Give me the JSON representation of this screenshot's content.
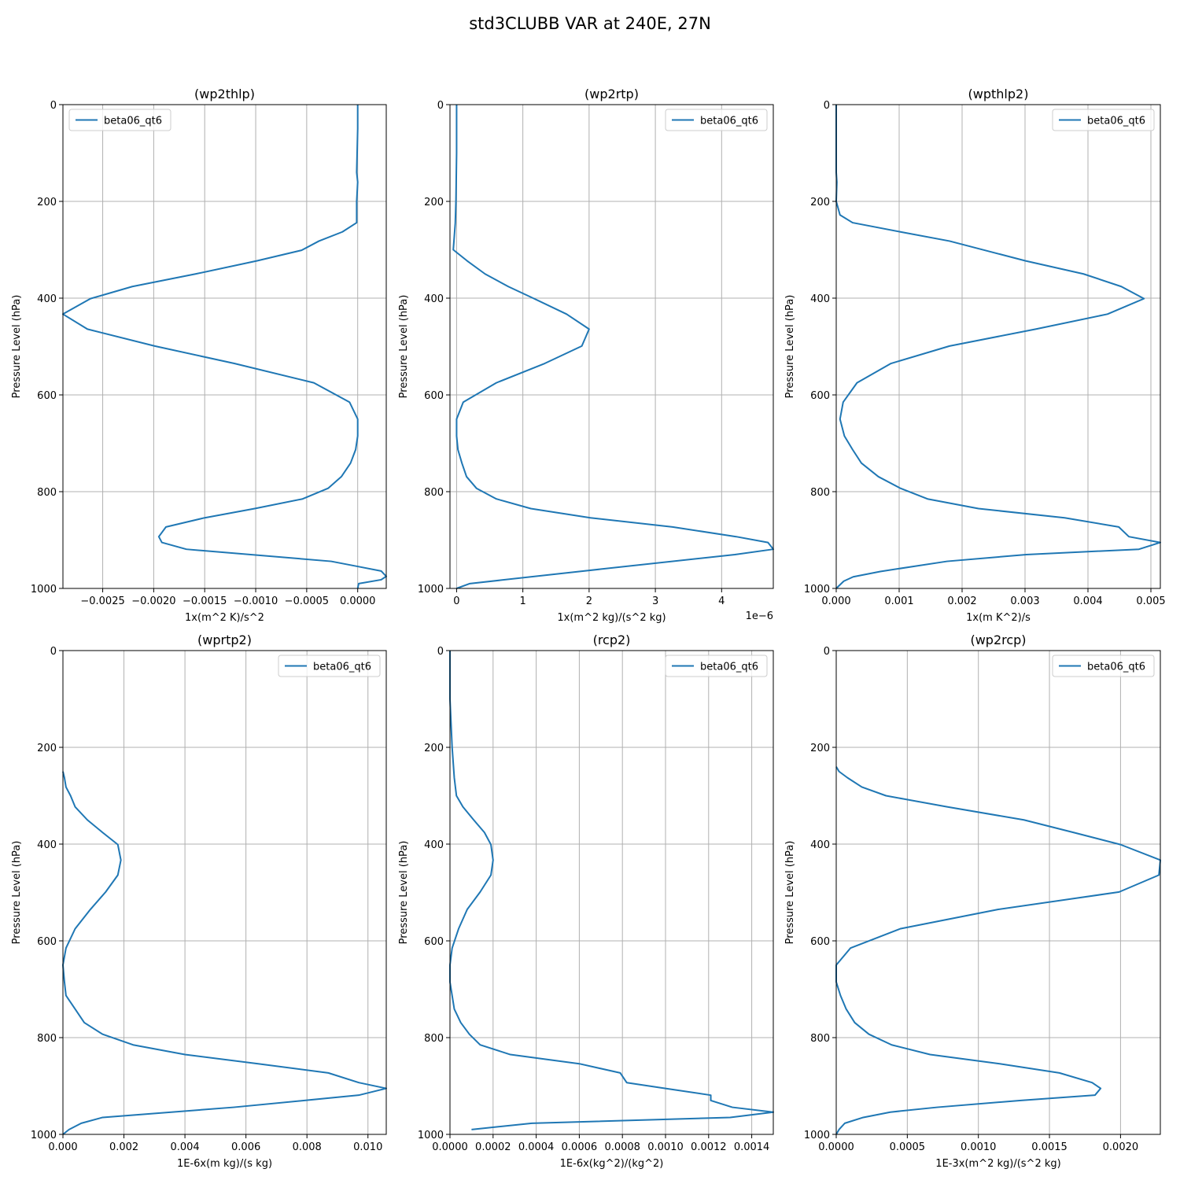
{
  "figure": {
    "title": "std3CLUBB VAR at 240E, 27N"
  },
  "colors": {
    "series": "#1f77b4",
    "grid": "#b0b0b0",
    "legend_border": "#cccccc"
  },
  "chart_data": [
    {
      "type": "line",
      "title": "(wp2thlp)",
      "xlabel": "1x(m^2 K)/s^2",
      "ylabel": "Pressure Level (hPa)",
      "offset_text": "",
      "xlim": [
        -0.00289,
        0.00028
      ],
      "ylim": [
        1000,
        0
      ],
      "grid": true,
      "legend": {
        "entries": [
          "beta06_qt6"
        ],
        "placement": "upper left"
      },
      "xticks": [
        -0.0025,
        -0.002,
        -0.0015,
        -0.001,
        -0.0005,
        0.0
      ],
      "xtick_labels": [
        "−0.0025",
        "−0.0020",
        "−0.0015",
        "−0.0010",
        "−0.0005",
        "0.0000"
      ],
      "yticks": [
        0,
        200,
        400,
        600,
        800,
        1000
      ],
      "ytick_labels": [
        "0",
        "200",
        "400",
        "600",
        "800",
        "1000"
      ],
      "series": [
        {
          "name": "beta06_qt6",
          "x": [
            0.0,
            0.0,
            -1e-05,
            0.0,
            -1e-05,
            -1e-05,
            -1e-05,
            -1e-05,
            -0.00015,
            -0.00038,
            -0.00055,
            -0.00099,
            -0.00159,
            -0.00221,
            -0.00262,
            -0.00289,
            -0.00265,
            -0.00199,
            -0.00121,
            -0.00043,
            -8e-05,
            0.0,
            0.0,
            -2e-05,
            -7e-05,
            -0.00016,
            -0.00029,
            -0.00054,
            -0.00101,
            -0.0015,
            -0.00188,
            -0.00195,
            -0.00192,
            -0.00168,
            -0.00026,
            1e-05,
            0.00023,
            0.00028,
            0.00023,
            1e-05,
            0.0
          ],
          "y": [
            0,
            50,
            140,
            160,
            200,
            228,
            236,
            244,
            263,
            282,
            301,
            323,
            350,
            376,
            401,
            433,
            464,
            499,
            535,
            575,
            615,
            650,
            685,
            713,
            741,
            769,
            793,
            815,
            835,
            854,
            873,
            893,
            905,
            919,
            944,
            955,
            964,
            975,
            982,
            990,
            1000
          ]
        }
      ]
    },
    {
      "type": "line",
      "title": "(wp2rtp)",
      "xlabel": "1x(m^2 kg)/(s^2 kg)",
      "ylabel": "Pressure Level (hPa)",
      "offset_text": "1e−6",
      "xlim": [
        -1e-07,
        4.78e-06
      ],
      "ylim": [
        1000,
        0
      ],
      "grid": true,
      "legend": {
        "entries": [
          "beta06_qt6"
        ],
        "placement": "upper right"
      },
      "xticks": [
        0,
        1e-06,
        2e-06,
        3e-06,
        4e-06
      ],
      "xtick_labels": [
        "0",
        "1",
        "2",
        "3",
        "4"
      ],
      "yticks": [
        0,
        200,
        400,
        600,
        800,
        1000
      ],
      "ytick_labels": [
        "0",
        "200",
        "400",
        "600",
        "800",
        "1000"
      ],
      "series": [
        {
          "name": "beta06_qt6",
          "x": [
            0.0,
            0.0,
            -1e-08,
            -2e-08,
            -5e-08,
            1.6e-07,
            4.3e-07,
            7.8e-07,
            1.17e-06,
            1.66e-06,
            2e-06,
            1.89e-06,
            1.33e-06,
            6e-07,
            1e-07,
            0.0,
            0.0,
            2e-08,
            8e-08,
            1.5e-07,
            3e-07,
            6e-07,
            1.12e-06,
            2.02e-06,
            3.26e-06,
            4.22e-06,
            4.7e-06,
            4.78e-06,
            4.2e-06,
            1.85e-06,
            2e-07,
            0.0
          ],
          "y": [
            0,
            100,
            200,
            245,
            300,
            323,
            350,
            376,
            401,
            433,
            464,
            499,
            535,
            575,
            615,
            650,
            685,
            713,
            741,
            769,
            793,
            815,
            835,
            854,
            873,
            893,
            905,
            919,
            930,
            965,
            990,
            1000
          ]
        }
      ]
    },
    {
      "type": "line",
      "title": "(wpthlp2)",
      "xlabel": "1x(m K^2)/s",
      "ylabel": "Pressure Level (hPa)",
      "offset_text": "",
      "xlim": [
        0,
        0.00515
      ],
      "ylim": [
        1000,
        0
      ],
      "grid": true,
      "legend": {
        "entries": [
          "beta06_qt6"
        ],
        "placement": "upper right"
      },
      "xticks": [
        0.0,
        0.001,
        0.002,
        0.003,
        0.004,
        0.005
      ],
      "xtick_labels": [
        "0.000",
        "0.001",
        "0.002",
        "0.003",
        "0.004",
        "0.005"
      ],
      "yticks": [
        0,
        200,
        400,
        600,
        800,
        1000
      ],
      "ytick_labels": [
        "0",
        "200",
        "400",
        "600",
        "800",
        "1000"
      ],
      "series": [
        {
          "name": "beta06_qt6",
          "x": [
            0.0,
            0.0,
            1e-05,
            0.0,
            6e-05,
            0.00026,
            0.00102,
            0.0018,
            0.00301,
            0.00393,
            0.00453,
            0.00489,
            0.00431,
            0.00317,
            0.0018,
            0.00087,
            0.00033,
            0.00011,
            6e-05,
            0.00013,
            0.00026,
            0.0004,
            0.00067,
            0.00102,
            0.00145,
            0.00226,
            0.00363,
            0.00449,
            0.00465,
            0.00515,
            0.00481,
            0.00302,
            0.00176,
            0.0007,
            0.00027,
            0.00012,
            0.0
          ],
          "y": [
            0,
            140,
            160,
            200,
            228,
            244,
            263,
            282,
            323,
            350,
            376,
            401,
            433,
            464,
            499,
            535,
            575,
            615,
            650,
            685,
            713,
            741,
            769,
            793,
            815,
            835,
            854,
            873,
            893,
            905,
            919,
            930,
            944,
            965,
            976,
            985,
            1000
          ]
        }
      ]
    },
    {
      "type": "line",
      "title": "(wprtp2)",
      "xlabel": "1E-6x(m kg)/(s kg)",
      "ylabel": "Pressure Level (hPa)",
      "offset_text": "",
      "xlim": [
        0,
        0.0106
      ],
      "ylim": [
        1000,
        0
      ],
      "grid": true,
      "legend": {
        "entries": [
          "beta06_qt6"
        ],
        "placement": "upper right"
      },
      "xticks": [
        0.0,
        0.002,
        0.004,
        0.006,
        0.008,
        0.01
      ],
      "xtick_labels": [
        "0.000",
        "0.002",
        "0.004",
        "0.006",
        "0.008",
        "0.010"
      ],
      "yticks": [
        0,
        200,
        400,
        600,
        800,
        1000
      ],
      "ytick_labels": [
        "0",
        "200",
        "400",
        "600",
        "800",
        "1000"
      ],
      "series": [
        {
          "name": "beta06_qt6",
          "x": [
            0.0,
            5e-05,
            0.0001,
            0.00025,
            0.0004,
            0.0008,
            0.0013,
            0.0018,
            0.0019,
            0.0018,
            0.0014,
            0.0009,
            0.0004,
            0.0001,
            0.0,
            5e-05,
            0.0001,
            0.0004,
            0.0007,
            0.0013,
            0.0023,
            0.004,
            0.0064,
            0.0087,
            0.0097,
            0.0106,
            0.0097,
            0.0056,
            0.0013,
            0.0006,
            0.0002,
            0.0
          ],
          "y": [
            250,
            263,
            282,
            300,
            323,
            350,
            376,
            401,
            433,
            464,
            499,
            535,
            575,
            615,
            650,
            685,
            713,
            741,
            769,
            793,
            815,
            835,
            854,
            873,
            893,
            905,
            919,
            944,
            965,
            977,
            990,
            1000
          ]
        }
      ]
    },
    {
      "type": "line",
      "title": "(rcp2)",
      "xlabel": "1E-6x(kg^2)/(kg^2)",
      "ylabel": "Pressure Level (hPa)",
      "offset_text": "",
      "xlim": [
        0,
        0.0015
      ],
      "ylim": [
        1000,
        0
      ],
      "grid": true,
      "legend": {
        "entries": [
          "beta06_qt6"
        ],
        "placement": "upper right"
      },
      "xticks": [
        0.0,
        0.0002,
        0.0004,
        0.0006,
        0.0008,
        0.001,
        0.0012,
        0.0014
      ],
      "xtick_labels": [
        "0.0000",
        "0.0002",
        "0.0004",
        "0.0006",
        "0.0008",
        "0.0010",
        "0.0012",
        "0.0014"
      ],
      "yticks": [
        0,
        200,
        400,
        600,
        800,
        1000
      ],
      "ytick_labels": [
        "0",
        "200",
        "400",
        "600",
        "800",
        "1000"
      ],
      "series": [
        {
          "name": "beta06_qt6",
          "x": [
            0.0,
            0.0,
            1e-05,
            2e-05,
            3e-05,
            6e-05,
            0.00011,
            0.00016,
            0.00019,
            0.0002,
            0.00019,
            0.00014,
            8e-05,
            4e-05,
            1e-05,
            0.0,
            0.0,
            1e-05,
            2e-05,
            5e-05,
            9e-05,
            0.00014,
            0.00028,
            0.0006,
            0.00079,
            0.00082,
            0.001,
            0.00121,
            0.00121,
            0.00131,
            0.0015,
            0.0013,
            0.00038,
            0.0001
          ],
          "y": [
            0,
            100,
            200,
            263,
            300,
            323,
            350,
            376,
            401,
            433,
            464,
            499,
            535,
            575,
            615,
            650,
            685,
            713,
            741,
            769,
            793,
            815,
            835,
            854,
            873,
            893,
            905,
            919,
            930,
            944,
            954,
            965,
            977,
            990
          ]
        }
      ]
    },
    {
      "type": "line",
      "title": "(wp2rcp)",
      "xlabel": "1E-3x(m^2 kg)/(s^2 kg)",
      "ylabel": "Pressure Level (hPa)",
      "offset_text": "",
      "xlim": [
        0,
        0.00228
      ],
      "ylim": [
        1000,
        0
      ],
      "grid": true,
      "legend": {
        "entries": [
          "beta06_qt6"
        ],
        "placement": "upper right"
      },
      "xticks": [
        0.0,
        0.0005,
        0.001,
        0.0015,
        0.002
      ],
      "xtick_labels": [
        "0.0000",
        "0.0005",
        "0.0010",
        "0.0015",
        "0.0020"
      ],
      "yticks": [
        0,
        200,
        400,
        600,
        800,
        1000
      ],
      "ytick_labels": [
        "0",
        "200",
        "400",
        "600",
        "800",
        "1000"
      ],
      "series": [
        {
          "name": "beta06_qt6",
          "x": [
            0.0,
            2e-05,
            8e-05,
            0.00018,
            0.00035,
            0.00078,
            0.00132,
            0.00167,
            0.002,
            0.00228,
            0.00227,
            0.00199,
            0.00114,
            0.00045,
            0.0001,
            0.0,
            0.0,
            3e-05,
            7e-05,
            0.00013,
            0.00023,
            0.00039,
            0.00066,
            0.00115,
            0.00157,
            0.0018,
            0.00186,
            0.00182,
            0.00129,
            0.00071,
            0.00038,
            0.00019,
            6e-05,
            2e-05,
            0.0
          ],
          "y": [
            240,
            250,
            263,
            282,
            300,
            323,
            350,
            376,
            401,
            433,
            464,
            499,
            535,
            575,
            615,
            650,
            685,
            713,
            741,
            769,
            793,
            815,
            835,
            854,
            873,
            893,
            905,
            919,
            930,
            944,
            954,
            965,
            977,
            990,
            1000
          ]
        }
      ]
    }
  ]
}
